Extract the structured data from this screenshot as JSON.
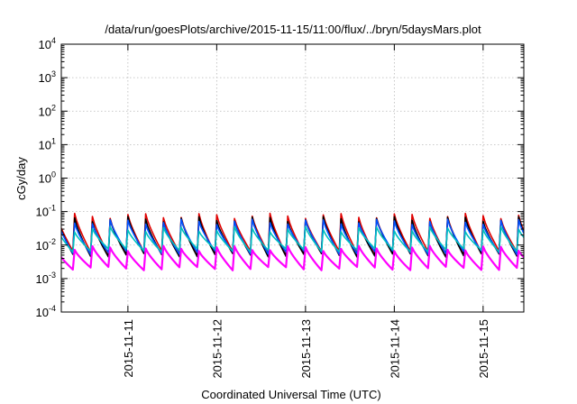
{
  "chart_data": {
    "type": "line",
    "title": "/data/run/goesPlots/archive/2015-11-15/11:00/flux/../bryn/5daysMars.plot",
    "xlabel": "Coordinated Universal Time (UTC)",
    "ylabel": "cGy/day",
    "y_scale": "log",
    "ylim": [
      0.0001,
      10000
    ],
    "xlim": [
      "2015-11-10T06:00",
      "2015-11-15T11:00"
    ],
    "grid": true,
    "legend": "none",
    "x_ticks": [
      "2015-11-11",
      "2015-11-12",
      "2015-11-13",
      "2015-11-14",
      "2015-11-15"
    ],
    "y_ticks": [
      {
        "base": "10",
        "exp": "-4"
      },
      {
        "base": "10",
        "exp": "-3"
      },
      {
        "base": "10",
        "exp": "-2"
      },
      {
        "base": "10",
        "exp": "-1"
      },
      {
        "base": "10",
        "exp": "0"
      },
      {
        "base": "10",
        "exp": "1"
      },
      {
        "base": "10",
        "exp": "2"
      },
      {
        "base": "10",
        "exp": "3"
      },
      {
        "base": "10",
        "exp": "4"
      }
    ],
    "sawtooth_period_hours": 4.8,
    "series": [
      {
        "color": "#e00000",
        "peak": 0.075,
        "trough": 0.006
      },
      {
        "color": "#000000",
        "peak": 0.06,
        "trough": 0.005
      },
      {
        "color": "#0050ff",
        "peak": 0.05,
        "trough": 0.006
      },
      {
        "color": "#00c0c0",
        "peak": 0.03,
        "trough": 0.007
      },
      {
        "color": "#ff00ff",
        "peak": 0.008,
        "trough": 0.002
      }
    ]
  }
}
